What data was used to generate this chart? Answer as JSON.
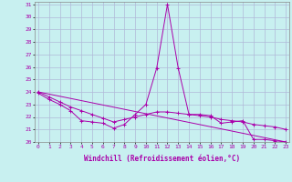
{
  "xlabel": "Windchill (Refroidissement éolien,°C)",
  "background_color": "#c8f0f0",
  "grid_color": "#b0b8d8",
  "line_color": "#aa00aa",
  "xmin": 0,
  "xmax": 23,
  "ymin": 20,
  "ymax": 31,
  "line1_x": [
    0,
    1,
    2,
    3,
    4,
    5,
    6,
    7,
    8,
    9,
    10,
    11,
    12,
    13,
    14,
    15,
    16,
    17,
    18,
    19,
    20,
    21,
    22,
    23
  ],
  "line1_y": [
    23.9,
    23.4,
    23.0,
    22.5,
    21.7,
    21.6,
    21.5,
    21.1,
    21.4,
    22.2,
    23.0,
    25.9,
    31.0,
    25.9,
    22.2,
    22.2,
    22.1,
    21.5,
    21.6,
    21.7,
    20.2,
    20.2,
    20.1,
    20.0
  ],
  "line2_x": [
    0,
    1,
    2,
    3,
    4,
    5,
    6,
    7,
    8,
    9,
    10,
    11,
    12,
    13,
    14,
    15,
    16,
    17,
    18,
    19,
    20,
    21,
    22,
    23
  ],
  "line2_y": [
    24.0,
    23.6,
    23.2,
    22.8,
    22.5,
    22.2,
    21.9,
    21.6,
    21.8,
    22.0,
    22.2,
    22.4,
    22.4,
    22.3,
    22.2,
    22.1,
    22.0,
    21.8,
    21.7,
    21.6,
    21.4,
    21.3,
    21.2,
    21.0
  ],
  "line3_x": [
    0,
    23
  ],
  "line3_y": [
    24.0,
    20.0
  ],
  "ytick_values": [
    20,
    21,
    22,
    23,
    24,
    25,
    26,
    27,
    28,
    29,
    30,
    31
  ],
  "xtick_positions": [
    0,
    1,
    2,
    3,
    4,
    5,
    6,
    7,
    8,
    9,
    10,
    11,
    12,
    13,
    14,
    15,
    16,
    17,
    18,
    19,
    20,
    21,
    22,
    23
  ],
  "xtick_labels": [
    "0",
    "1",
    "2",
    "3",
    "4",
    "5",
    "6",
    "7",
    "8",
    "9",
    "10",
    "11",
    "12",
    "13",
    "14",
    "15",
    "16",
    "17",
    "18",
    "19",
    "20",
    "21",
    "22",
    "23"
  ]
}
